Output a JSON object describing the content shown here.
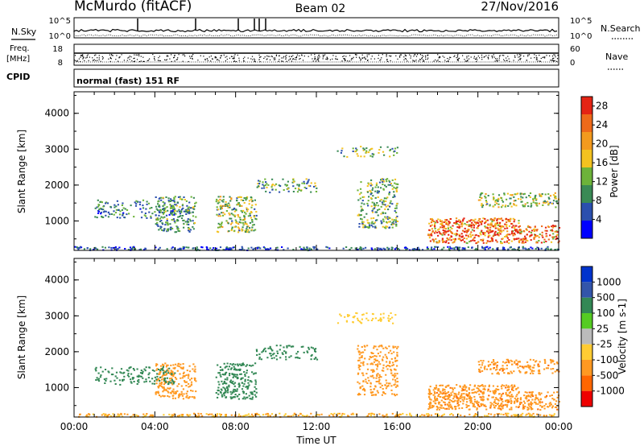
{
  "header": {
    "station": "McMurdo (fitACF)",
    "beam": "Beam 02",
    "date": "27/Nov/2016"
  },
  "small_panels": {
    "nsky_label": "N.Sky",
    "nsearch_label": "N.Search",
    "nsky_ticks": [
      "10^5",
      "10^0"
    ],
    "nsearch_ticks": [
      "10^5",
      "10^0"
    ],
    "freq_label_top": "Freq.",
    "freq_label_unit": "[MHz]",
    "freq_ticks": [
      "18",
      "8"
    ],
    "nave_label": "Nave",
    "nave_ticks": [
      "60",
      "0"
    ],
    "cpid_label": "CPID",
    "cpid_text": "normal (fast) 151 RF"
  },
  "colors": {
    "power": [
      "#0000ff",
      "#2b4fae",
      "#3a8a55",
      "#6db33a",
      "#f3c220",
      "#f39a1e",
      "#ee6a1a",
      "#e42414"
    ],
    "velocity": [
      "#0033cc",
      "#3355aa",
      "#338855",
      "#55cc22",
      "#bbbbbb",
      "#ffcc33",
      "#ff9922",
      "#ff6600",
      "#ee0000"
    ]
  },
  "chart_data": [
    {
      "type": "heatmap",
      "name": "power-panel",
      "ylabel": "Slant Range [km]",
      "xlabel": "",
      "x_ticks": [],
      "y_ticks": [
        "1000",
        "2000",
        "3000",
        "4000"
      ],
      "xlim": [
        0,
        24
      ],
      "ylim": [
        180,
        4600
      ],
      "colorbar_label": "Power [dB]",
      "colorbar_ticks": [
        "4",
        "8",
        "12",
        "16",
        "20",
        "24",
        "28"
      ],
      "colorbar_range": [
        0,
        30
      ],
      "regions": [
        {
          "t0": 0.0,
          "t1": 24.0,
          "r0": 200,
          "r1": 300,
          "v": 6,
          "d": 0.7
        },
        {
          "t0": 4.0,
          "t1": 6.0,
          "r0": 700,
          "r1": 1700,
          "v": 10,
          "d": 0.55
        },
        {
          "t0": 7.0,
          "t1": 9.0,
          "r0": 700,
          "r1": 1700,
          "v": 14,
          "d": 0.55
        },
        {
          "t0": 14.0,
          "t1": 16.0,
          "r0": 800,
          "r1": 2200,
          "v": 12,
          "d": 0.45
        },
        {
          "t0": 17.5,
          "t1": 22.0,
          "r0": 400,
          "r1": 1100,
          "v": 24,
          "d": 0.75
        },
        {
          "t0": 20.0,
          "t1": 24.0,
          "r0": 1400,
          "r1": 1800,
          "v": 14,
          "d": 0.5
        },
        {
          "t0": 22.0,
          "t1": 24.0,
          "r0": 400,
          "r1": 900,
          "v": 22,
          "d": 0.6
        },
        {
          "t0": 9.0,
          "t1": 12.0,
          "r0": 1800,
          "r1": 2200,
          "v": 11,
          "d": 0.35
        },
        {
          "t0": 1.0,
          "t1": 5.0,
          "r0": 1100,
          "r1": 1600,
          "v": 9,
          "d": 0.35
        },
        {
          "t0": 13.0,
          "t1": 16.0,
          "r0": 2800,
          "r1": 3100,
          "v": 12,
          "d": 0.3
        }
      ]
    },
    {
      "type": "heatmap",
      "name": "velocity-panel",
      "ylabel": "Slant Range [km]",
      "xlabel": "Time UT",
      "x_ticks": [
        "00:00",
        "04:00",
        "08:00",
        "12:00",
        "16:00",
        "20:00",
        "00:00"
      ],
      "y_ticks": [
        "1000",
        "2000",
        "3000",
        "4000"
      ],
      "xlim": [
        0,
        24
      ],
      "ylim": [
        180,
        4600
      ],
      "colorbar_label": "Velocity [m s-1]",
      "colorbar_ticks": [
        "1000",
        "500",
        "100",
        "25",
        "-25",
        "-100",
        "-500",
        "-1000"
      ],
      "regions": [
        {
          "t0": 0.0,
          "t1": 24.0,
          "r0": 200,
          "r1": 300,
          "v": -100,
          "d": 0.7
        },
        {
          "t0": 4.0,
          "t1": 6.0,
          "r0": 700,
          "r1": 1700,
          "v": -300,
          "d": 0.55
        },
        {
          "t0": 7.0,
          "t1": 9.0,
          "r0": 700,
          "r1": 1700,
          "v": 300,
          "d": 0.55
        },
        {
          "t0": 14.0,
          "t1": 16.0,
          "r0": 800,
          "r1": 2200,
          "v": -300,
          "d": 0.45
        },
        {
          "t0": 17.5,
          "t1": 22.0,
          "r0": 400,
          "r1": 1100,
          "v": -400,
          "d": 0.75
        },
        {
          "t0": 20.0,
          "t1": 24.0,
          "r0": 1400,
          "r1": 1800,
          "v": -400,
          "d": 0.5
        },
        {
          "t0": 22.0,
          "t1": 24.0,
          "r0": 400,
          "r1": 900,
          "v": -400,
          "d": 0.6
        },
        {
          "t0": 9.0,
          "t1": 12.0,
          "r0": 1800,
          "r1": 2200,
          "v": 200,
          "d": 0.35
        },
        {
          "t0": 1.0,
          "t1": 5.0,
          "r0": 1100,
          "r1": 1600,
          "v": 150,
          "d": 0.35
        },
        {
          "t0": 13.0,
          "t1": 16.0,
          "r0": 2800,
          "r1": 3100,
          "v": -60,
          "d": 0.3
        }
      ]
    }
  ]
}
